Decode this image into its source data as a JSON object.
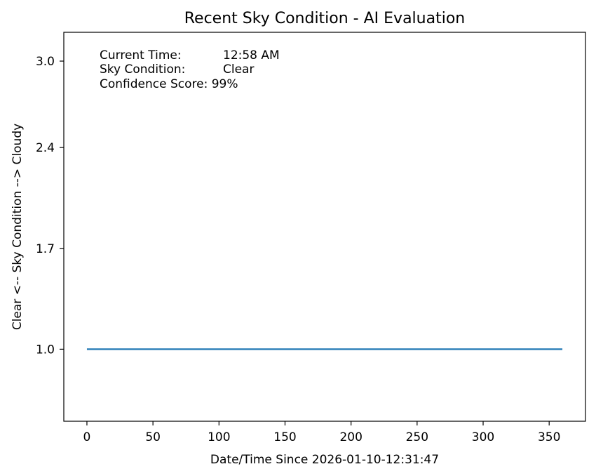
{
  "chart_data": {
    "type": "line",
    "title": "Recent Sky Condition - AI Evaluation",
    "xlabel": "Date/Time Since 2026-01-10-12:31:47",
    "ylabel": "Clear  <-- Sky Condition --> Cloudy",
    "xlim": [
      -17.5,
      377.5
    ],
    "ylim": [
      0.5,
      3.2
    ],
    "xticks": [
      0,
      50,
      100,
      150,
      200,
      250,
      300,
      350
    ],
    "yticks": [
      1.0,
      1.7,
      2.4,
      3.0
    ],
    "ytick_labels": [
      "1.0",
      "1.7",
      "2.4",
      "3.0"
    ],
    "grid": false,
    "series": [
      {
        "color": "#1f77b4",
        "x": [
          0,
          360
        ],
        "y": [
          1.0,
          1.0
        ]
      }
    ],
    "annotations": [
      {
        "label": "Current Time:",
        "value": "12:58 AM"
      },
      {
        "label": "Sky Condition:",
        "value": "Clear"
      },
      {
        "label": "Confidence Score: 99%",
        "value": ""
      }
    ]
  }
}
